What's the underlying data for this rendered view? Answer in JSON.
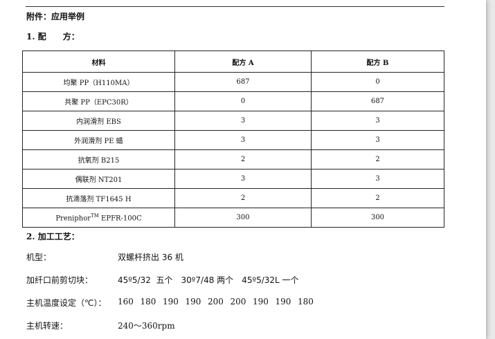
{
  "doc": {
    "heading": "附件：应用举例",
    "section1": "1. 配　　方：",
    "table": {
      "headers": [
        "材料",
        "配方 A",
        "配方 B"
      ],
      "rows": [
        {
          "material": "均聚 PP（H110MA）",
          "a": "687",
          "b": "0"
        },
        {
          "material": "共聚 PP（EPC30R）",
          "a": "0",
          "b": "687"
        },
        {
          "material": "内润滑剂 EBS",
          "a": "3",
          "b": "3"
        },
        {
          "material": "外润滑剂 PE 蜡",
          "a": "3",
          "b": "3"
        },
        {
          "material": "抗氧剂 B215",
          "a": "2",
          "b": "2"
        },
        {
          "material": "偶联剂 NT201",
          "a": "3",
          "b": "3"
        },
        {
          "material": "抗滴落剂 TF1645 H",
          "a": "2",
          "b": "2"
        }
      ],
      "last_row": {
        "material_prefix": "Preniphor",
        "material_sup": "TM",
        "material_suffix": " EPFR-100C",
        "a": "300",
        "b": "300"
      }
    },
    "section2": "2. 加工工艺：",
    "process": [
      {
        "label": "机型：",
        "value": "双螺杆挤出 36 机"
      },
      {
        "label": "加纤口前剪切块：",
        "value": "45º5/32  五个　30º7/48 两个　45º5/32L 一个"
      },
      {
        "label": "主机温度设定（℃）：",
        "temps": [
          "160",
          "180",
          "190",
          "190",
          "200",
          "200",
          "190",
          "190",
          "180"
        ]
      },
      {
        "label": "主机转速：",
        "value": "240～360rpm"
      }
    ]
  }
}
